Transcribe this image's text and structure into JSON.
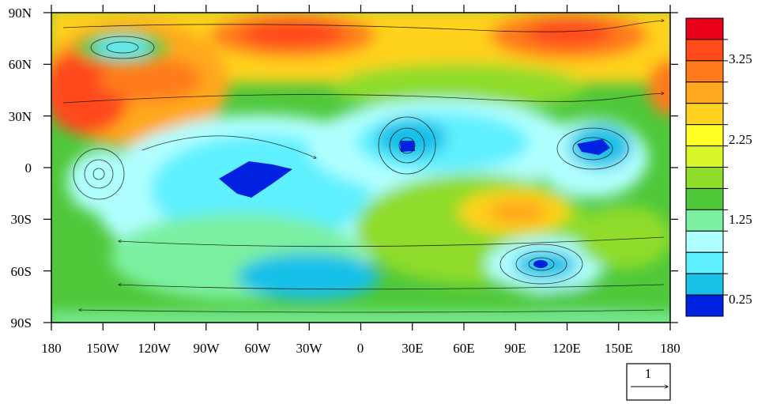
{
  "map": {
    "lon_ticks": [
      "180",
      "150W",
      "120W",
      "90W",
      "60W",
      "30W",
      "0",
      "30E",
      "60E",
      "90E",
      "120E",
      "150E",
      "180"
    ],
    "lat_ticks": [
      "90N",
      "60N",
      "30N",
      "0",
      "30S",
      "60S",
      "90S"
    ],
    "colorbar": {
      "labels": [
        "3.25",
        "2.25",
        "1.25",
        "0.25"
      ],
      "colors": [
        "#e8001a",
        "#ff4a1a",
        "#ff7a1a",
        "#ffa81f",
        "#ffd21f",
        "#ffff26",
        "#d8f52a",
        "#8fdc2a",
        "#4fc83a",
        "#7cf0a0",
        "#b0ffff",
        "#5ff0ff",
        "#19c0e8",
        "#0022e0"
      ]
    },
    "reference_vector": {
      "magnitude": "1"
    }
  }
}
